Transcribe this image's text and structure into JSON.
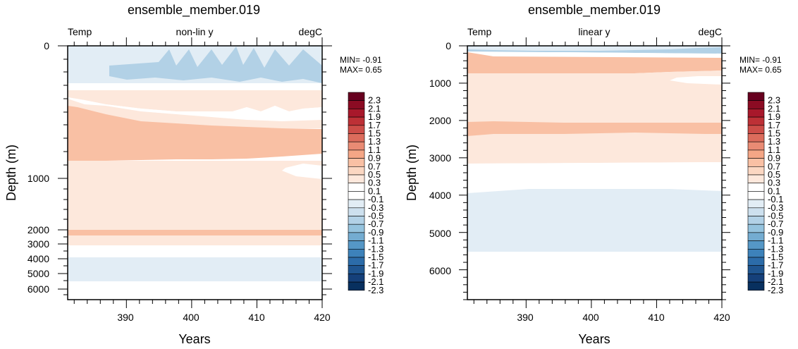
{
  "chart_data": [
    {
      "type": "heatmap",
      "title": "ensemble_member.019",
      "subtitle_left": "Temp",
      "subtitle_center": "non-lin y",
      "subtitle_right": "degC",
      "xlabel": "Years",
      "ylabel": "Depth (m)",
      "x_ticks": [
        "390",
        "400",
        "410",
        "420"
      ],
      "y_ticks": [
        "0",
        "1000",
        "2000",
        "3000",
        "4000",
        "5000",
        "6000"
      ],
      "xlim": [
        381,
        420
      ],
      "ylim": [
        0,
        6500
      ],
      "y_scale": "non-linear",
      "min_label": "MIN= -0.91",
      "max_label": "MAX=  0.65",
      "bands": [
        {
          "depth_top": 0,
          "depth_bottom": 150,
          "value": -0.2
        },
        {
          "depth_top": 150,
          "depth_bottom": 420,
          "value": -0.45
        },
        {
          "depth_top": 420,
          "depth_bottom": 560,
          "value": 0.2
        },
        {
          "depth_top": 560,
          "depth_bottom": 850,
          "value": 0.35
        },
        {
          "depth_top": 850,
          "depth_bottom": 2000,
          "value": 0.2
        },
        {
          "depth_top": 2000,
          "depth_bottom": 2200,
          "value": 0.35
        },
        {
          "depth_top": 2200,
          "depth_bottom": 3100,
          "value": 0.2
        },
        {
          "depth_top": 3100,
          "depth_bottom": 3850,
          "value": 0.0
        },
        {
          "depth_top": 3850,
          "depth_bottom": 5500,
          "value": -0.2
        },
        {
          "depth_top": 5500,
          "depth_bottom": 6500,
          "value": 0.0
        }
      ]
    },
    {
      "type": "heatmap",
      "title": "ensemble_member.019",
      "subtitle_left": "Temp",
      "subtitle_center": "linear y",
      "subtitle_right": "degC",
      "xlabel": "Years",
      "ylabel": "Depth (m)",
      "x_ticks": [
        "390",
        "400",
        "410",
        "420"
      ],
      "y_ticks": [
        "0",
        "1000",
        "2000",
        "3000",
        "4000",
        "5000",
        "6000"
      ],
      "xlim": [
        381,
        420
      ],
      "ylim": [
        0,
        6800
      ],
      "y_scale": "linear",
      "min_label": "MIN= -0.91",
      "max_label": "MAX=  0.65",
      "bands": [
        {
          "depth_top": 0,
          "depth_bottom": 150,
          "value": -0.2
        },
        {
          "depth_top": 150,
          "depth_bottom": 800,
          "value": 0.35
        },
        {
          "depth_top": 800,
          "depth_bottom": 2050,
          "value": 0.2
        },
        {
          "depth_top": 2050,
          "depth_bottom": 2450,
          "value": 0.35
        },
        {
          "depth_top": 2450,
          "depth_bottom": 3100,
          "value": 0.2
        },
        {
          "depth_top": 3100,
          "depth_bottom": 3850,
          "value": 0.0
        },
        {
          "depth_top": 3850,
          "depth_bottom": 5500,
          "value": -0.2
        },
        {
          "depth_top": 5500,
          "depth_bottom": 6800,
          "value": 0.0
        }
      ]
    }
  ],
  "colorbar": {
    "labels": [
      "2.3",
      "2.1",
      "1.9",
      "1.7",
      "1.5",
      "1.3",
      "1.1",
      "0.9",
      "0.7",
      "0.5",
      "0.3",
      "0.1",
      "-0.1",
      "-0.3",
      "-0.5",
      "-0.7",
      "-0.9",
      "-1.1",
      "-1.3",
      "-1.5",
      "-1.7",
      "-1.9",
      "-2.1",
      "-2.3"
    ],
    "colors": [
      "#67001f",
      "#8b0b23",
      "#a8182b",
      "#bd3036",
      "#cd4d48",
      "#dc6c5c",
      "#e98b74",
      "#f4a686",
      "#f9c0a4",
      "#fbd7c2",
      "#fde8dc",
      "#ffffff",
      "#ffffff",
      "#e2edf5",
      "#cde0ee",
      "#b2d1e6",
      "#95c3de",
      "#74acd1",
      "#5597c6",
      "#3d82ba",
      "#2c6ca9",
      "#1f5590",
      "#15407a",
      "#08305f"
    ]
  }
}
